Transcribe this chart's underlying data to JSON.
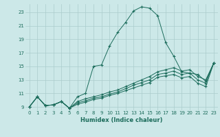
{
  "xlabel": "Humidex (Indice chaleur)",
  "ylabel": "",
  "bg_color": "#cce8e8",
  "grid_color": "#aacccc",
  "line_color": "#1a6b5a",
  "xlim": [
    -0.5,
    23.5
  ],
  "ylim": [
    8.5,
    24.2
  ],
  "yticks": [
    9,
    11,
    13,
    15,
    17,
    19,
    21,
    23
  ],
  "xticks": [
    0,
    1,
    2,
    3,
    4,
    5,
    6,
    7,
    8,
    9,
    10,
    11,
    12,
    13,
    14,
    15,
    16,
    17,
    18,
    19,
    20,
    21,
    22,
    23
  ],
  "series": [
    [
      9.0,
      10.5,
      9.2,
      9.3,
      9.8,
      8.8,
      10.5,
      11.0,
      15.0,
      15.2,
      18.0,
      20.0,
      21.5,
      23.2,
      23.8,
      23.6,
      22.5,
      18.5,
      16.5,
      14.2,
      14.0,
      13.8,
      12.8,
      15.5
    ],
    [
      9.0,
      10.5,
      9.2,
      9.3,
      9.8,
      8.8,
      9.8,
      10.2,
      10.5,
      10.8,
      11.2,
      11.5,
      12.0,
      12.5,
      13.0,
      13.5,
      14.2,
      14.5,
      14.8,
      14.3,
      14.5,
      13.5,
      13.0,
      15.5
    ],
    [
      9.0,
      10.5,
      9.2,
      9.3,
      9.8,
      8.8,
      9.6,
      9.9,
      10.3,
      10.5,
      10.9,
      11.2,
      11.7,
      12.2,
      12.6,
      13.0,
      13.8,
      14.0,
      14.3,
      13.8,
      14.0,
      13.0,
      12.5,
      15.5
    ],
    [
      9.0,
      10.5,
      9.2,
      9.3,
      9.8,
      8.8,
      9.4,
      9.7,
      10.1,
      10.3,
      10.7,
      11.0,
      11.4,
      11.8,
      12.2,
      12.6,
      13.4,
      13.6,
      13.8,
      13.3,
      13.5,
      12.5,
      12.0,
      15.5
    ]
  ]
}
